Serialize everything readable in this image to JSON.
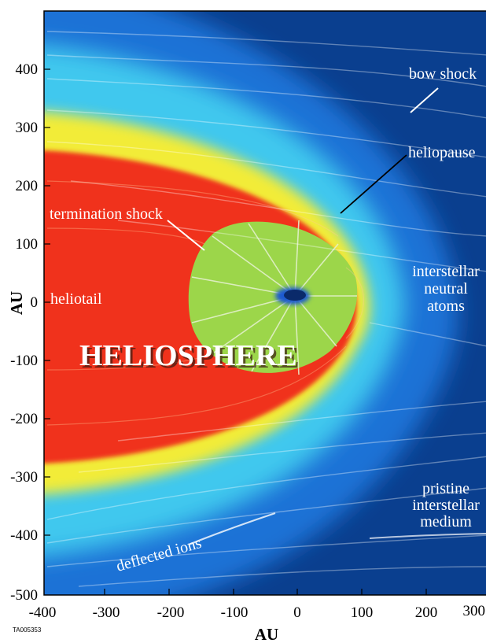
{
  "axes": {
    "y_label": "AU",
    "x_label": "AU",
    "y_ticks": [
      "400",
      "300",
      "200",
      "100",
      "0",
      "-100",
      "-200",
      "-300",
      "-400",
      "-500"
    ],
    "x_ticks": [
      "-400",
      "-300",
      "-200",
      "-100",
      "0",
      "100",
      "200",
      "300"
    ]
  },
  "labels": {
    "bow_shock": "bow shock",
    "heliopause": "heliopause",
    "termination_shock": "termination shock",
    "heliotail": "heliotail",
    "heliosphere": "HELIOSPHERE",
    "neutral_1": "interstellar",
    "neutral_2": "neutral",
    "neutral_3": "atoms",
    "pristine_1": "pristine",
    "pristine_2": "interstellar",
    "pristine_3": "medium",
    "deflected_ions": "deflected ions"
  },
  "figure_code": "TA005353",
  "colors": {
    "outer_medium": "#0a3f8f",
    "blue_band": "#1e78d8",
    "cyan_band": "#3ec6ee",
    "yellow_band": "#f4ee3a",
    "heliosheath_red": "#f0321a",
    "supersonic_green": "#9cd64a",
    "sun": "#0a2a6a"
  }
}
